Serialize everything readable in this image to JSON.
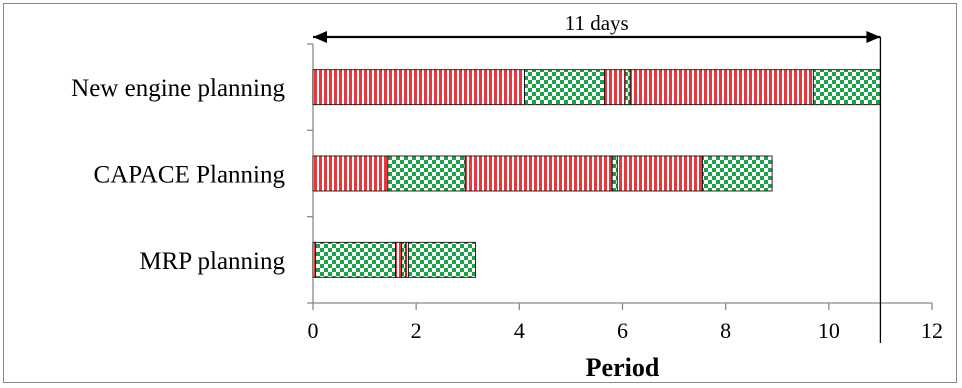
{
  "chart_data": {
    "type": "bar",
    "orientation": "horizontal",
    "stacked": true,
    "categories": [
      "New engine planning",
      "CAPACE Planning",
      "MRP planning"
    ],
    "segment_types": {
      "red": {
        "color": "#e8383d",
        "pattern": "vertical-stripes"
      },
      "green": {
        "color": "#1ea04a",
        "pattern": "checkerboard"
      }
    },
    "segments": [
      [
        {
          "type": "red",
          "value": 4.1
        },
        {
          "type": "green",
          "value": 1.55
        },
        {
          "type": "red",
          "value": 0.4
        },
        {
          "type": "green",
          "value": 0.1
        },
        {
          "type": "red",
          "value": 3.55
        },
        {
          "type": "green",
          "value": 1.3
        }
      ],
      [
        {
          "type": "red",
          "value": 1.45
        },
        {
          "type": "green",
          "value": 1.5
        },
        {
          "type": "red",
          "value": 2.85
        },
        {
          "type": "green",
          "value": 0.1
        },
        {
          "type": "red",
          "value": 1.65
        },
        {
          "type": "green",
          "value": 1.35
        }
      ],
      [
        {
          "type": "red",
          "value": 0.05
        },
        {
          "type": "green",
          "value": 1.55
        },
        {
          "type": "red",
          "value": 0.12
        },
        {
          "type": "green",
          "value": 0.08
        },
        {
          "type": "red",
          "value": 0.05
        },
        {
          "type": "green",
          "value": 1.3
        }
      ]
    ],
    "xlabel": "Period",
    "xlim": [
      0,
      12
    ],
    "xticks": [
      0,
      2,
      4,
      6,
      8,
      10,
      12
    ],
    "grid": false,
    "annotation": {
      "label": "11 days",
      "from": 0,
      "to": 11
    }
  }
}
